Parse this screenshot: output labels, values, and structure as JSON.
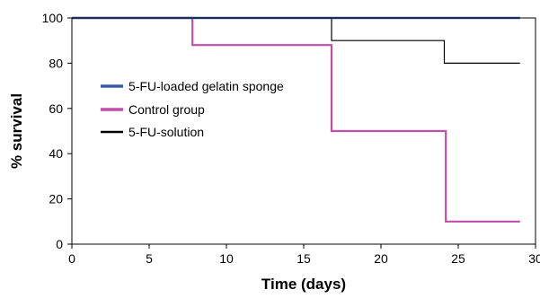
{
  "chart_data": {
    "type": "line",
    "xlabel": "Time (days)",
    "ylabel": "% survival",
    "xlim": [
      0,
      30
    ],
    "ylim": [
      0,
      100
    ],
    "xticks": [
      0,
      5,
      10,
      15,
      20,
      25,
      30
    ],
    "yticks": [
      0,
      20,
      40,
      60,
      80,
      100
    ],
    "grid": false,
    "legend_position": "center-left",
    "series": [
      {
        "name": "5-FU-loaded gelatin sponge",
        "color": "#3a5aa8",
        "step": true,
        "points": [
          [
            0,
            100
          ],
          [
            29,
            100
          ]
        ]
      },
      {
        "name": "Control group",
        "color": "#c04fa8",
        "step": true,
        "points": [
          [
            0,
            100
          ],
          [
            7.8,
            100
          ],
          [
            7.8,
            88
          ],
          [
            16.8,
            88
          ],
          [
            16.8,
            50
          ],
          [
            24.2,
            50
          ],
          [
            24.2,
            10
          ],
          [
            29,
            10
          ]
        ]
      },
      {
        "name": "5-FU-solution",
        "color": "#000000",
        "step": true,
        "points": [
          [
            0,
            100
          ],
          [
            16.8,
            100
          ],
          [
            16.8,
            90
          ],
          [
            24.1,
            90
          ],
          [
            24.1,
            80
          ],
          [
            29,
            80
          ]
        ]
      }
    ]
  }
}
